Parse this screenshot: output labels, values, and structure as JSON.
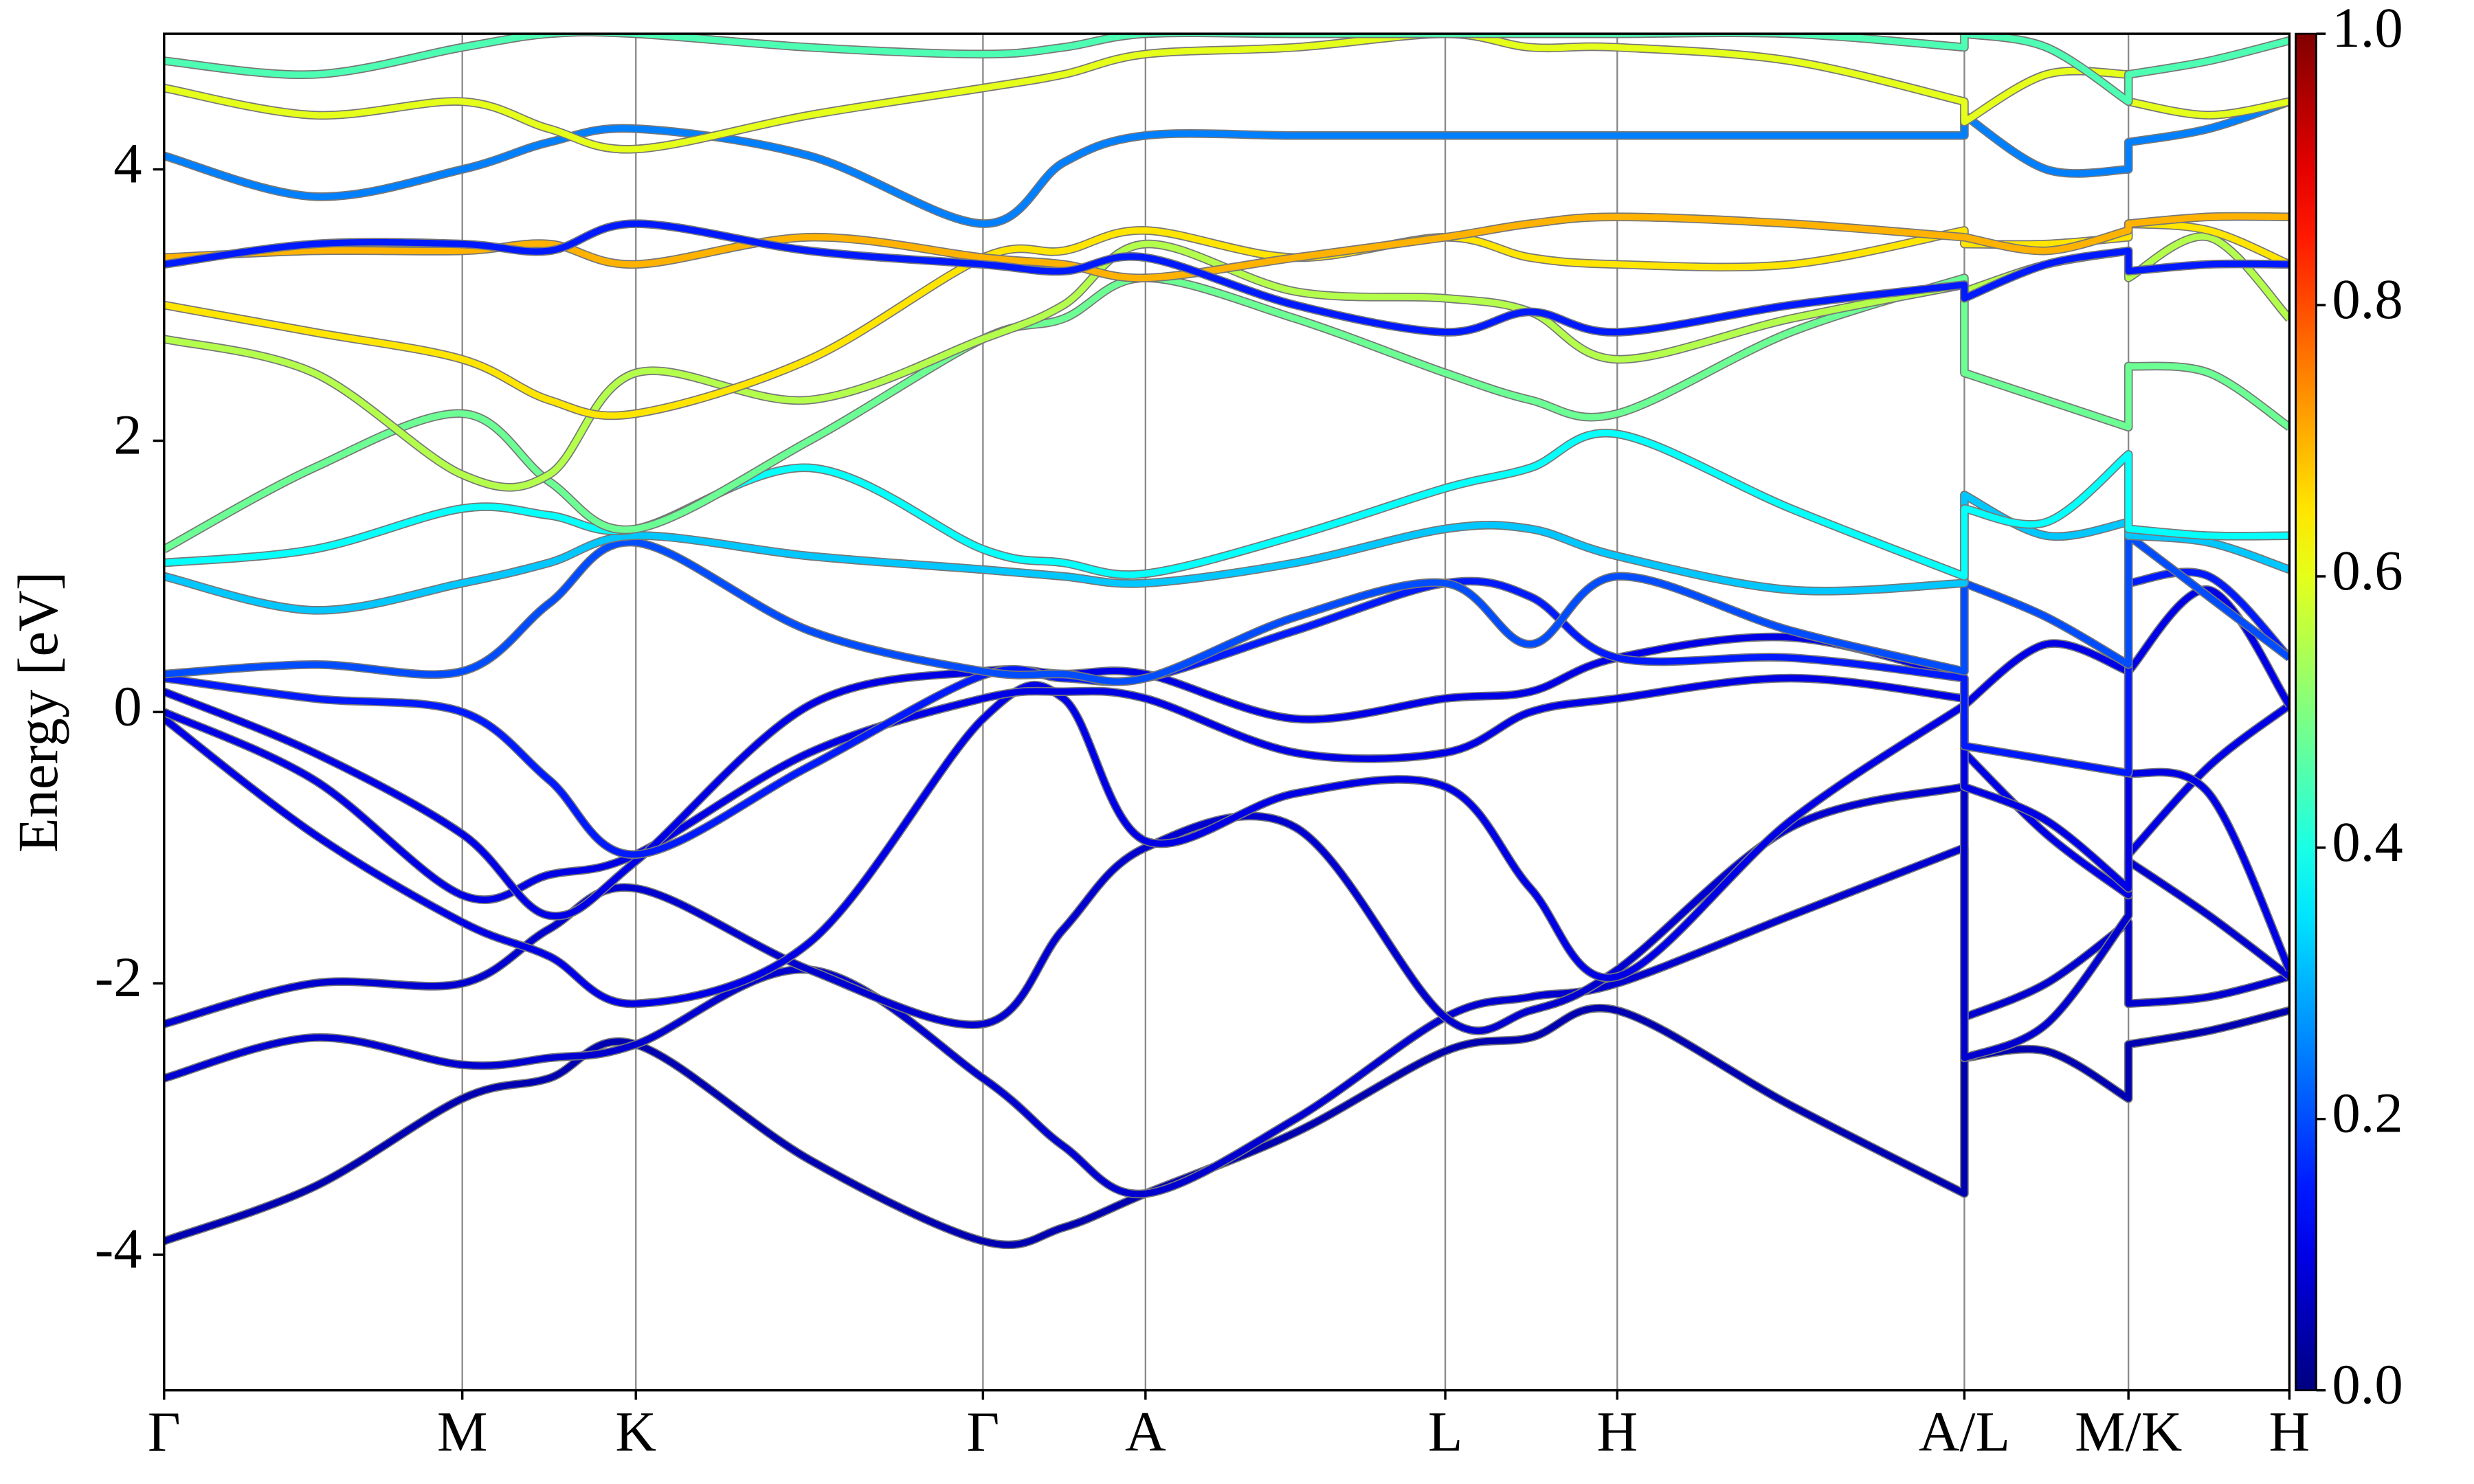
{
  "chart_data": {
    "type": "band-structure",
    "y_label": "Energy [eV]",
    "xlim": [
      0,
      1.347
    ],
    "ylim": [
      -5,
      5
    ],
    "yticks": [
      -4,
      -2,
      0,
      2,
      4
    ],
    "xticks": [
      {
        "value": 0,
        "label": "Γ"
      },
      {
        "value": 0.189,
        "label": "M"
      },
      {
        "value": 0.299,
        "label": "K"
      },
      {
        "value": 0.519,
        "label": "Γ"
      },
      {
        "value": 0.622,
        "label": "A"
      },
      {
        "value": 0.812,
        "label": "L"
      },
      {
        "value": 0.921,
        "label": "H"
      },
      {
        "value": 1.141,
        "label": "A/L"
      },
      {
        "value": 1.245,
        "label": "M/K"
      },
      {
        "value": 1.347,
        "label": "H"
      }
    ],
    "grid": true,
    "colormap": "jet",
    "clim": [
      0,
      1
    ],
    "cticks": [
      {
        "value": 0,
        "label": "0.0"
      },
      0.2,
      0.4,
      0.6,
      0.8,
      {
        "value": 1,
        "label": "1.0"
      }
    ],
    "x": [
      0,
      0.095,
      0.189,
      0.244,
      0.299,
      0.409,
      0.519,
      0.57,
      0.622,
      0.717,
      0.812,
      0.866,
      0.921,
      1.031,
      1.141,
      1.141,
      1.193,
      1.245,
      1.245,
      1.296,
      1.347
    ],
    "series": [
      {
        "weight": 0.05,
        "values": [
          -3.9,
          -3.5,
          -2.85,
          -2.7,
          -2.45,
          -3.3,
          -3.9,
          -3.8,
          -3.55,
          -3.1,
          -2.5,
          -2.4,
          -2.2,
          -2.9,
          -3.55,
          -2.55,
          -2.5,
          -2.85,
          -2.45,
          -2.35,
          -2.2
        ]
      },
      {
        "weight": 0.08,
        "values": [
          -2.7,
          -2.4,
          -2.6,
          -2.55,
          -2.45,
          -1.9,
          -2.7,
          -3.2,
          -3.55,
          -3.0,
          -2.25,
          -2.1,
          -2.0,
          -1.5,
          -1.0,
          -2.25,
          -2.0,
          -1.55,
          -2.15,
          -2.1,
          -1.95
        ]
      },
      {
        "weight": 0.08,
        "values": [
          -2.3,
          -2.0,
          -2.0,
          -1.6,
          -1.3,
          -1.9,
          -2.3,
          -1.6,
          -1.0,
          -0.85,
          -2.25,
          -2.2,
          -1.9,
          -0.85,
          -0.55,
          -2.55,
          -2.3,
          -1.5,
          -1.1,
          -1.5,
          -1.95
        ]
      },
      {
        "weight": 0.1,
        "values": [
          -0.05,
          -0.9,
          -1.55,
          -1.8,
          -2.15,
          -1.7,
          -0.05,
          0.1,
          -0.95,
          -0.6,
          -0.55,
          -1.3,
          -1.95,
          -0.8,
          0.05,
          -0.3,
          -0.9,
          -1.35,
          -1.05,
          -0.4,
          0.05
        ]
      },
      {
        "weight": 0.1,
        "values": [
          0,
          -0.5,
          -1.35,
          -1.2,
          -1.05,
          -0.3,
          0.1,
          0.15,
          0.1,
          -0.3,
          -0.3,
          0,
          0.1,
          0.25,
          0.1,
          -0.55,
          -0.8,
          -1.3,
          0.3,
          0.9,
          0.05
        ]
      },
      {
        "weight": 0.1,
        "values": [
          0.15,
          -0.3,
          -0.9,
          -1.5,
          -1.1,
          0.05,
          0.3,
          0.28,
          0.28,
          -0.05,
          0.1,
          0.15,
          0.4,
          0.55,
          0.25,
          0.05,
          0.5,
          0.3,
          -0.45,
          -0.6,
          -1.9
        ]
      },
      {
        "weight": 0.15,
        "values": [
          0.25,
          0.1,
          0,
          -0.5,
          -1.05,
          -0.4,
          0.27,
          0.25,
          0.25,
          0.6,
          0.95,
          0.85,
          0.4,
          0.4,
          0.25,
          -0.25,
          -0.35,
          -0.45,
          0.95,
          1.0,
          0.4
        ]
      },
      {
        "weight": 0.2,
        "values": [
          0.28,
          0.35,
          0.3,
          0.8,
          1.25,
          0.6,
          0.3,
          0.28,
          0.25,
          0.7,
          0.95,
          0.5,
          1.0,
          0.6,
          0.3,
          0.95,
          0.7,
          0.35,
          1.3,
          0.85,
          0.4
        ]
      },
      {
        "weight": 0.32,
        "values": [
          1.0,
          0.75,
          0.95,
          1.1,
          1.3,
          1.15,
          1.05,
          1.0,
          0.95,
          1.1,
          1.35,
          1.35,
          1.15,
          0.9,
          0.95,
          1.6,
          1.3,
          1.4,
          1.3,
          1.25,
          1.05
        ]
      },
      {
        "weight": 0.38,
        "values": [
          1.1,
          1.2,
          1.5,
          1.45,
          1.35,
          1.8,
          1.2,
          1.1,
          1.02,
          1.3,
          1.65,
          1.8,
          2.05,
          1.5,
          1.0,
          1.5,
          1.4,
          1.9,
          1.35,
          1.3,
          1.3
        ]
      },
      {
        "weight": 0.48,
        "values": [
          1.2,
          1.8,
          2.2,
          1.7,
          1.35,
          2.0,
          2.75,
          2.9,
          3.2,
          2.9,
          2.5,
          2.3,
          2.2,
          2.8,
          3.2,
          2.5,
          2.3,
          2.1,
          2.55,
          2.5,
          2.1
        ]
      },
      {
        "weight": 0.55,
        "values": [
          2.75,
          2.5,
          1.75,
          1.75,
          2.5,
          2.3,
          2.75,
          3.0,
          3.45,
          3.1,
          3.05,
          2.95,
          2.6,
          2.9,
          3.15,
          3.1,
          3.3,
          3.4,
          3.2,
          3.5,
          2.9
        ]
      },
      {
        "weight": 0.65,
        "values": [
          3.0,
          2.8,
          2.6,
          2.3,
          2.2,
          2.6,
          3.35,
          3.4,
          3.55,
          3.35,
          3.5,
          3.35,
          3.3,
          3.3,
          3.55,
          3.45,
          3.45,
          3.5,
          3.6,
          3.55,
          3.3
        ]
      },
      {
        "weight": 0.7,
        "values": [
          3.35,
          3.4,
          3.4,
          3.45,
          3.3,
          3.5,
          3.35,
          3.3,
          3.2,
          3.35,
          3.5,
          3.6,
          3.65,
          3.6,
          3.5,
          3.5,
          3.4,
          3.55,
          3.6,
          3.65,
          3.65
        ]
      },
      {
        "weight": 0.15,
        "values": [
          3.3,
          3.45,
          3.45,
          3.4,
          3.6,
          3.4,
          3.3,
          3.25,
          3.35,
          3.0,
          2.8,
          2.95,
          2.8,
          3.0,
          3.15,
          3.05,
          3.3,
          3.4,
          3.25,
          3.3,
          3.3
        ]
      },
      {
        "weight": 0.25,
        "values": [
          4.1,
          3.8,
          4.0,
          4.2,
          4.3,
          4.1,
          3.6,
          4.05,
          4.25,
          4.25,
          4.25,
          4.25,
          4.25,
          4.25,
          4.25,
          4.4,
          4.0,
          4.0,
          4.2,
          4.3,
          4.5
        ]
      },
      {
        "weight": 0.6,
        "values": [
          4.6,
          4.4,
          4.5,
          4.3,
          4.15,
          4.4,
          4.6,
          4.7,
          4.85,
          4.9,
          5.0,
          4.9,
          4.9,
          4.8,
          4.5,
          4.35,
          4.7,
          4.7,
          4.5,
          4.4,
          4.5
        ]
      },
      {
        "weight": 0.45,
        "values": [
          4.8,
          4.7,
          4.9,
          5.0,
          5.0,
          4.9,
          4.85,
          4.9,
          5.0,
          5.0,
          5.0,
          5.0,
          5.0,
          5.0,
          4.9,
          5.0,
          4.9,
          4.5,
          4.7,
          4.8,
          4.95
        ]
      }
    ]
  }
}
